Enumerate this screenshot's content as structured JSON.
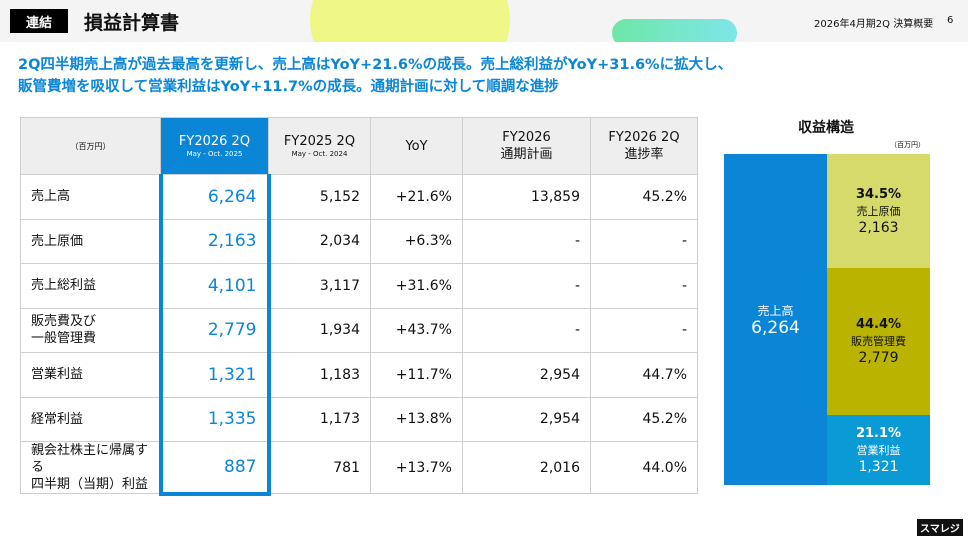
{
  "header": {
    "badge": "連結",
    "title": "損益計算書",
    "meta": "2026年4月期2Q 決算概要",
    "page": "6"
  },
  "headline": [
    "2Q四半期売上高が過去最高を更新し、売上高はYoY+21.6%の成長。売上総利益がYoY+31.6%に拡大し、",
    "販管費増を吸収して営業利益はYoY+11.7%の成長。通期計画に対して順調な進捗"
  ],
  "table": {
    "unit": "（百万円）",
    "columns": [
      {
        "t": "FY2026 2Q",
        "s": "May - Oct. 2025"
      },
      {
        "t": "FY2025 2Q",
        "s": "May - Oct. 2024"
      },
      {
        "t": "YoY",
        "s": ""
      },
      {
        "t": "FY2026",
        "s": "通期計画"
      },
      {
        "t": "FY2026 2Q",
        "s": "進捗率"
      }
    ],
    "rows": [
      {
        "label": "売上高",
        "cells": [
          "6,264",
          "5,152",
          "+21.6%",
          "13,859",
          "45.2%"
        ]
      },
      {
        "label": "売上原価",
        "cells": [
          "2,163",
          "2,034",
          "+6.3%",
          "-",
          "-"
        ]
      },
      {
        "label": "売上総利益",
        "cells": [
          "4,101",
          "3,117",
          "+31.6%",
          "-",
          "-"
        ]
      },
      {
        "label": "販売費及び\n一般管理費",
        "cells": [
          "2,779",
          "1,934",
          "+43.7%",
          "-",
          "-"
        ]
      },
      {
        "label": "営業利益",
        "cells": [
          "1,321",
          "1,183",
          "+11.7%",
          "2,954",
          "44.7%"
        ]
      },
      {
        "label": "経常利益",
        "cells": [
          "1,335",
          "1,173",
          "+13.8%",
          "2,954",
          "45.2%"
        ]
      },
      {
        "label": "親会社株主に帰属する\n四半期（当期）利益",
        "cells": [
          "887",
          "781",
          "+13.7%",
          "2,016",
          "44.0%"
        ]
      }
    ]
  },
  "structure": {
    "title": "収益構造",
    "unit": "（百万円）",
    "sales": {
      "label": "売上高",
      "value": "6,264",
      "color": "#0b86d6"
    },
    "parts": [
      {
        "pct": "34.5%",
        "label": "売上原価",
        "value": "2,163",
        "color": "#d6da6a",
        "share": 34.5
      },
      {
        "pct": "44.4%",
        "label": "販売管理費",
        "value": "2,779",
        "color": "#bab400",
        "share": 44.4
      },
      {
        "pct": "21.1%",
        "label": "営業利益",
        "value": "1,321",
        "color": "#0a9ad6",
        "share": 21.1
      }
    ]
  },
  "logo": "スマレジ"
}
